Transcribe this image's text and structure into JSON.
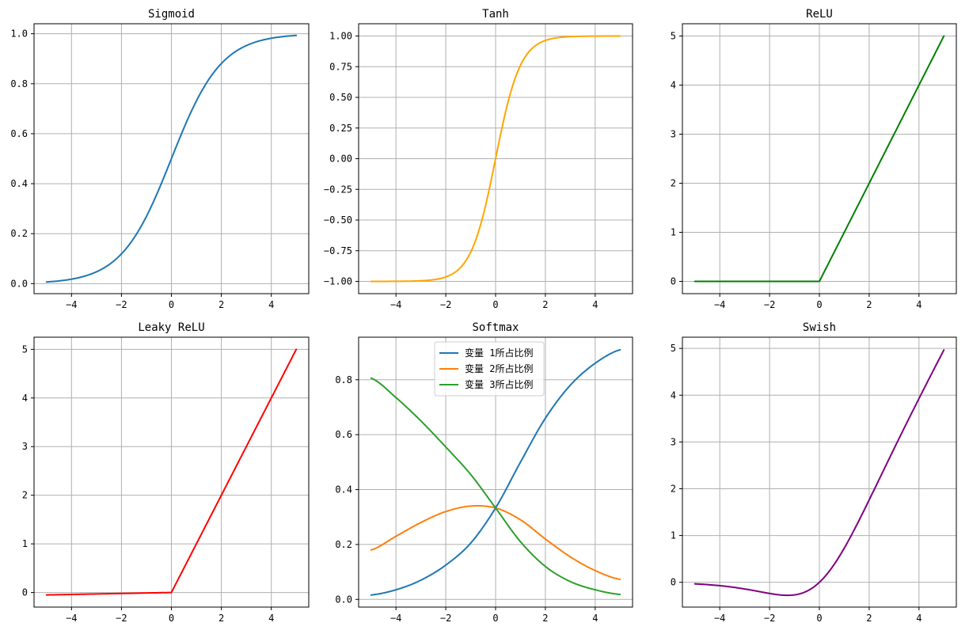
{
  "chart_data": [
    {
      "type": "line",
      "title": "Sigmoid",
      "function": "sigmoid",
      "x_range": [
        -5,
        5
      ],
      "xlim": [
        -5.5,
        5.5
      ],
      "ylim": [
        -0.04,
        1.04
      ],
      "xticks": [
        -4,
        -2,
        0,
        2,
        4
      ],
      "xtick_labels": [
        "−4",
        "−2",
        "0",
        "2",
        "4"
      ],
      "yticks": [
        0.0,
        0.2,
        0.4,
        0.6,
        0.8,
        1.0
      ],
      "ytick_labels": [
        "0.0",
        "0.2",
        "0.4",
        "0.6",
        "0.8",
        "1.0"
      ],
      "grid": true,
      "series": [
        {
          "name": "Sigmoid",
          "color": "#1f77b4",
          "x": [
            -5,
            -4,
            -3,
            -2,
            -1,
            0,
            1,
            2,
            3,
            4,
            5
          ],
          "y": [
            0.0067,
            0.018,
            0.047,
            0.119,
            0.269,
            0.5,
            0.731,
            0.881,
            0.953,
            0.982,
            0.9933
          ]
        }
      ]
    },
    {
      "type": "line",
      "title": "Tanh",
      "function": "tanh",
      "x_range": [
        -5,
        5
      ],
      "xlim": [
        -5.5,
        5.5
      ],
      "ylim": [
        -1.1,
        1.1
      ],
      "xticks": [
        -4,
        -2,
        0,
        2,
        4
      ],
      "xtick_labels": [
        "−4",
        "−2",
        "0",
        "2",
        "4"
      ],
      "yticks": [
        -1.0,
        -0.75,
        -0.5,
        -0.25,
        0.0,
        0.25,
        0.5,
        0.75,
        1.0
      ],
      "ytick_labels": [
        "−1.00",
        "−0.75",
        "−0.50",
        "−0.25",
        "0.00",
        "0.25",
        "0.50",
        "0.75",
        "1.00"
      ],
      "grid": true,
      "series": [
        {
          "name": "Tanh",
          "color": "#ffa500",
          "x": [
            -5,
            -4,
            -3,
            -2,
            -1,
            0,
            1,
            2,
            3,
            4,
            5
          ],
          "y": [
            -0.9999,
            -0.9993,
            -0.995,
            -0.964,
            -0.762,
            0.0,
            0.762,
            0.964,
            0.995,
            0.9993,
            0.9999
          ]
        }
      ]
    },
    {
      "type": "line",
      "title": "ReLU",
      "function": "relu",
      "x_range": [
        -5,
        5
      ],
      "xlim": [
        -5.5,
        5.5
      ],
      "ylim": [
        -0.25,
        5.25
      ],
      "xticks": [
        -4,
        -2,
        0,
        2,
        4
      ],
      "xtick_labels": [
        "−4",
        "−2",
        "0",
        "2",
        "4"
      ],
      "yticks": [
        0,
        1,
        2,
        3,
        4,
        5
      ],
      "ytick_labels": [
        "0",
        "1",
        "2",
        "3",
        "4",
        "5"
      ],
      "grid": true,
      "series": [
        {
          "name": "ReLU",
          "color": "#008000",
          "x": [
            -5,
            0,
            5
          ],
          "y": [
            0,
            0,
            5
          ]
        }
      ]
    },
    {
      "type": "line",
      "title": "Leaky ReLU",
      "function": "leaky_relu",
      "x_range": [
        -5,
        5
      ],
      "xlim": [
        -5.5,
        5.5
      ],
      "ylim": [
        -0.3,
        5.25
      ],
      "xticks": [
        -4,
        -2,
        0,
        2,
        4
      ],
      "xtick_labels": [
        "−4",
        "−2",
        "0",
        "2",
        "4"
      ],
      "yticks": [
        0,
        1,
        2,
        3,
        4,
        5
      ],
      "ytick_labels": [
        "0",
        "1",
        "2",
        "3",
        "4",
        "5"
      ],
      "grid": true,
      "series": [
        {
          "name": "Leaky ReLU",
          "color": "#ff0000",
          "x": [
            -5,
            0,
            5
          ],
          "y": [
            -0.05,
            0,
            5
          ]
        }
      ]
    },
    {
      "type": "line",
      "title": "Softmax",
      "function": "softmax",
      "x_range": [
        -5,
        5
      ],
      "xlim": [
        -5.5,
        5.5
      ],
      "ylim": [
        -0.028,
        0.955
      ],
      "xticks": [
        -4,
        -2,
        0,
        2,
        4
      ],
      "xtick_labels": [
        "−4",
        "−2",
        "0",
        "2",
        "4"
      ],
      "yticks": [
        0.0,
        0.2,
        0.4,
        0.6,
        0.8
      ],
      "ytick_labels": [
        "0.0",
        "0.2",
        "0.4",
        "0.6",
        "0.8"
      ],
      "grid": true,
      "legend": "top-center",
      "series": [
        {
          "name": "变量 1所占比例",
          "color": "#1f77b4",
          "x": [
            -5,
            -4,
            -3,
            -2,
            -1,
            0,
            1,
            2,
            3,
            4,
            5
          ],
          "y": [
            0.016,
            0.035,
            0.07,
            0.125,
            0.205,
            0.333,
            0.5,
            0.66,
            0.78,
            0.86,
            0.909
          ]
        },
        {
          "name": "变量 2所占比例",
          "color": "#ff7f0e",
          "x": [
            -5,
            -4,
            -3,
            -2,
            -1,
            0,
            1,
            2,
            3,
            4,
            5
          ],
          "y": [
            0.18,
            0.23,
            0.28,
            0.32,
            0.34,
            0.333,
            0.29,
            0.22,
            0.155,
            0.105,
            0.073
          ]
        },
        {
          "name": "变量 3所占比例",
          "color": "#2ca02c",
          "x": [
            -5,
            -4,
            -3,
            -2,
            -1,
            0,
            1,
            2,
            3,
            4,
            5
          ],
          "y": [
            0.806,
            0.735,
            0.65,
            0.555,
            0.455,
            0.333,
            0.21,
            0.12,
            0.065,
            0.035,
            0.018
          ]
        }
      ]
    },
    {
      "type": "line",
      "title": "Swish",
      "function": "swish",
      "x_range": [
        -5,
        5
      ],
      "xlim": [
        -5.5,
        5.5
      ],
      "ylim": [
        -0.53,
        5.24
      ],
      "xticks": [
        -4,
        -2,
        0,
        2,
        4
      ],
      "xtick_labels": [
        "−4",
        "−2",
        "0",
        "2",
        "4"
      ],
      "yticks": [
        0,
        1,
        2,
        3,
        4,
        5
      ],
      "ytick_labels": [
        "0",
        "1",
        "2",
        "3",
        "4",
        "5"
      ],
      "grid": true,
      "series": [
        {
          "name": "Swish",
          "color": "#800080",
          "x": [
            -5,
            -4,
            -3,
            -2,
            -1.28,
            -1,
            0,
            1,
            2,
            3,
            4,
            5
          ],
          "y": [
            -0.033,
            -0.072,
            -0.142,
            -0.238,
            -0.278,
            -0.269,
            0,
            0.731,
            1.762,
            2.858,
            3.928,
            4.967
          ]
        }
      ]
    }
  ]
}
